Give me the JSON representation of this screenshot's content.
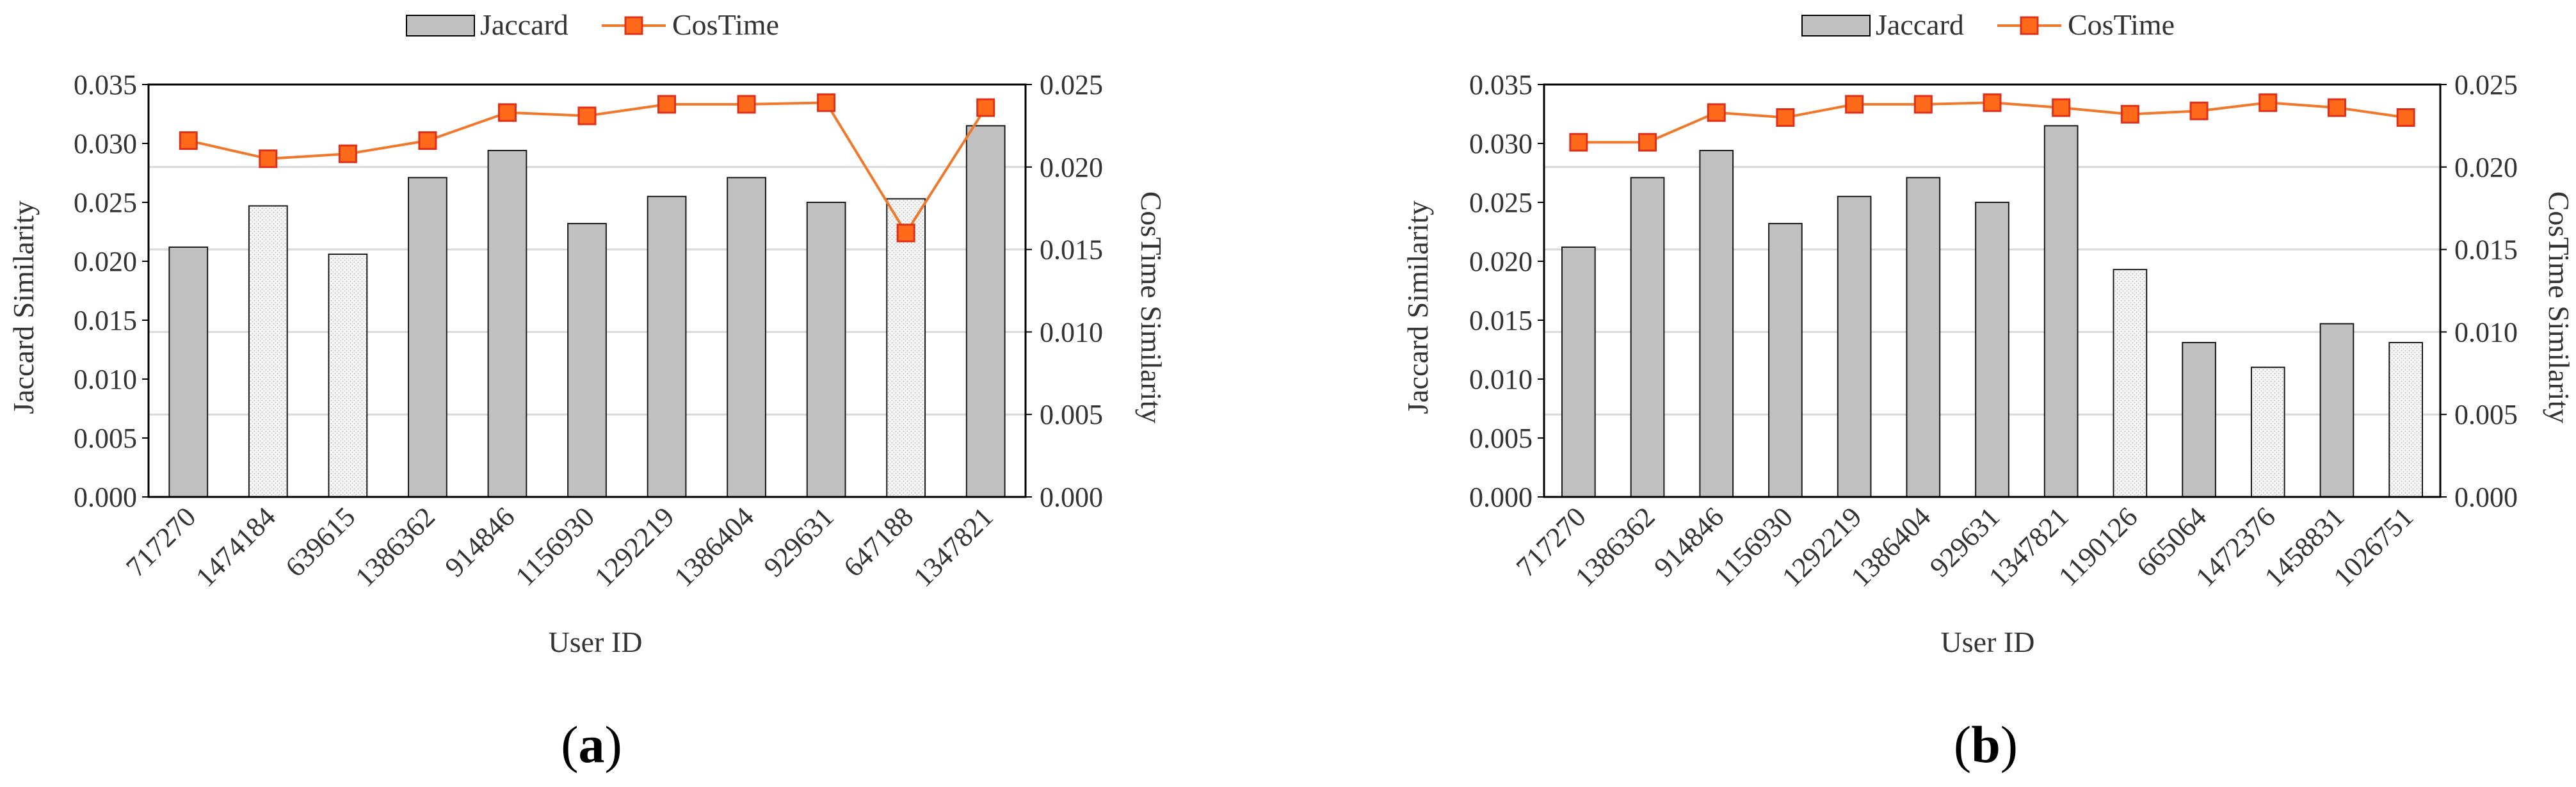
{
  "legend": {
    "bar_label": "Jaccard",
    "line_label": "CosTime"
  },
  "colors": {
    "bar_solid": "#c0c0c0",
    "bar_light": "#f4f4f4",
    "line": "#f0782a",
    "marker_fill": "#ff6a1a",
    "marker_edge": "#e0301a",
    "axis": "#000000",
    "grid": "#d9d9d9"
  },
  "chart_data": [
    {
      "type": "bar",
      "panel": {
        "open": "(",
        "letter": "a",
        "close": ")"
      },
      "xlabel": "User  ID",
      "ylabel": "Jaccard Similarity",
      "y2label": "CosTime Similarity",
      "ylim": [
        0,
        0.035
      ],
      "y2lim": [
        0,
        0.025
      ],
      "yticks": [
        "0.000",
        "0.005",
        "0.010",
        "0.015",
        "0.020",
        "0.025",
        "0.030",
        "0.035"
      ],
      "y2ticks": [
        "0.000",
        "0.005",
        "0.010",
        "0.015",
        "0.020",
        "0.025"
      ],
      "grid": true,
      "legend_position": "top-center",
      "categories": [
        "717270",
        "1474184",
        "639615",
        "1386362",
        "914846",
        "1156930",
        "1292219",
        "1386404",
        "929631",
        "647188",
        "1347821"
      ],
      "series": [
        {
          "name": "Jaccard",
          "axis": "left",
          "kind": "bar",
          "values": [
            0.0212,
            0.0247,
            0.0206,
            0.0271,
            0.0294,
            0.0232,
            0.0255,
            0.0271,
            0.025,
            0.0253,
            0.0315
          ],
          "styles": [
            "solid",
            "light",
            "light",
            "solid",
            "solid",
            "solid",
            "solid",
            "solid",
            "solid",
            "light",
            "solid"
          ]
        },
        {
          "name": "CosTime",
          "axis": "right",
          "kind": "line",
          "values": [
            0.0216,
            0.0205,
            0.0208,
            0.0216,
            0.0233,
            0.0231,
            0.0238,
            0.0238,
            0.0239,
            0.016,
            0.0236
          ]
        }
      ]
    },
    {
      "type": "bar",
      "panel": {
        "open": "(",
        "letter": "b",
        "close": ")"
      },
      "xlabel": "User ID",
      "ylabel": "Jaccard Similarity",
      "y2label": "CosTime Similarity",
      "ylim": [
        0,
        0.035
      ],
      "y2lim": [
        0,
        0.025
      ],
      "yticks": [
        "0.000",
        "0.005",
        "0.010",
        "0.015",
        "0.020",
        "0.025",
        "0.030",
        "0.035"
      ],
      "y2ticks": [
        "0.000",
        "0.005",
        "0.010",
        "0.015",
        "0.020",
        "0.025"
      ],
      "grid": true,
      "legend_position": "top-center",
      "categories": [
        "717270",
        "1386362",
        "914846",
        "1156930",
        "1292219",
        "1386404",
        "929631",
        "1347821",
        "1190126",
        "665064",
        "1472376",
        "1458831",
        "1026751"
      ],
      "series": [
        {
          "name": "Jaccard",
          "axis": "left",
          "kind": "bar",
          "values": [
            0.0212,
            0.0271,
            0.0294,
            0.0232,
            0.0255,
            0.0271,
            0.025,
            0.0315,
            0.0193,
            0.0131,
            0.011,
            0.0147,
            0.0131
          ],
          "styles": [
            "solid",
            "solid",
            "solid",
            "solid",
            "solid",
            "solid",
            "solid",
            "solid",
            "light",
            "solid",
            "light",
            "solid",
            "light"
          ]
        },
        {
          "name": "CosTime",
          "axis": "right",
          "kind": "line",
          "values": [
            0.0215,
            0.0215,
            0.0233,
            0.023,
            0.0238,
            0.0238,
            0.0239,
            0.0236,
            0.0232,
            0.0234,
            0.0239,
            0.0236,
            0.023
          ]
        }
      ]
    }
  ]
}
